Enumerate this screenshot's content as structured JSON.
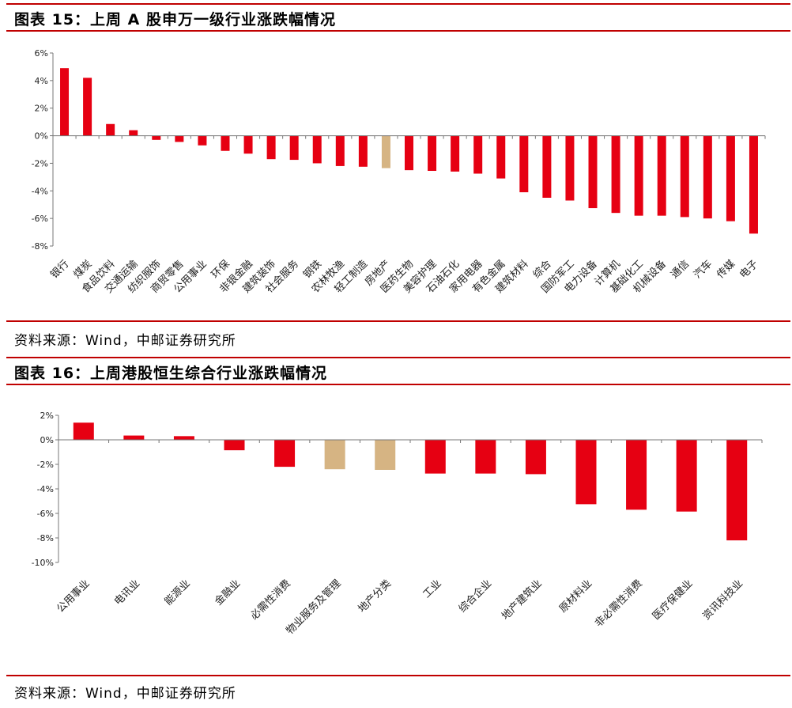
{
  "fig15": {
    "title": "图表 15：上周 A 股申万一级行业涨跌幅情况",
    "source": "资料来源：Wind，中邮证券研究所"
  },
  "fig16": {
    "title": "图表 16：上周港股恒生综合行业涨跌幅情况",
    "source": "资料来源：Wind，中邮证券研究所"
  },
  "colors": {
    "accent": "#c00000",
    "bar": "#e60012",
    "highlight": "#d6b483"
  },
  "chart_data": [
    {
      "type": "bar",
      "title": "",
      "xlabel": "",
      "ylabel": "",
      "ylim": [
        -8,
        6
      ],
      "yticks": [
        6,
        4,
        2,
        0,
        -2,
        -4,
        -6,
        -8
      ],
      "ytick_format": "percent",
      "categories": [
        "银行",
        "煤炭",
        "食品饮料",
        "交通运输",
        "纺织服饰",
        "商贸零售",
        "公用事业",
        "环保",
        "非银金融",
        "建筑装饰",
        "社会服务",
        "钢铁",
        "农林牧渔",
        "轻工制造",
        "房地产",
        "医药生物",
        "美容护理",
        "石油石化",
        "家用电器",
        "有色金属",
        "建筑材料",
        "综合",
        "国防军工",
        "电力设备",
        "计算机",
        "基础化工",
        "机械设备",
        "通信",
        "汽车",
        "传媒",
        "电子"
      ],
      "values": [
        4.9,
        4.2,
        0.85,
        0.4,
        -0.3,
        -0.45,
        -0.7,
        -1.1,
        -1.3,
        -1.7,
        -1.75,
        -2.0,
        -2.2,
        -2.25,
        -2.35,
        -2.5,
        -2.55,
        -2.6,
        -2.75,
        -3.1,
        -4.1,
        -4.5,
        -4.7,
        -5.25,
        -5.6,
        -5.8,
        -5.8,
        -5.9,
        -6.0,
        -6.2,
        -7.1
      ],
      "highlight": [
        "房地产"
      ],
      "grid": false,
      "legend": "none"
    },
    {
      "type": "bar",
      "title": "",
      "xlabel": "",
      "ylabel": "",
      "ylim": [
        -10,
        2
      ],
      "yticks": [
        2,
        0,
        -2,
        -4,
        -6,
        -8,
        -10
      ],
      "ytick_format": "percent",
      "categories": [
        "公用事业",
        "电讯业",
        "能源业",
        "金融业",
        "必需性消费",
        "物业服务及管理",
        "地产分类",
        "工业",
        "综合企业",
        "地产建筑业",
        "原材料业",
        "非必需性消费",
        "医疗保健业",
        "资讯科技业"
      ],
      "values": [
        1.4,
        0.35,
        0.3,
        -0.85,
        -2.2,
        -2.4,
        -2.45,
        -2.75,
        -2.75,
        -2.8,
        -5.25,
        -5.7,
        -5.85,
        -8.2
      ],
      "highlight": [
        "物业服务及管理",
        "地产分类"
      ],
      "grid": false,
      "legend": "none"
    }
  ]
}
